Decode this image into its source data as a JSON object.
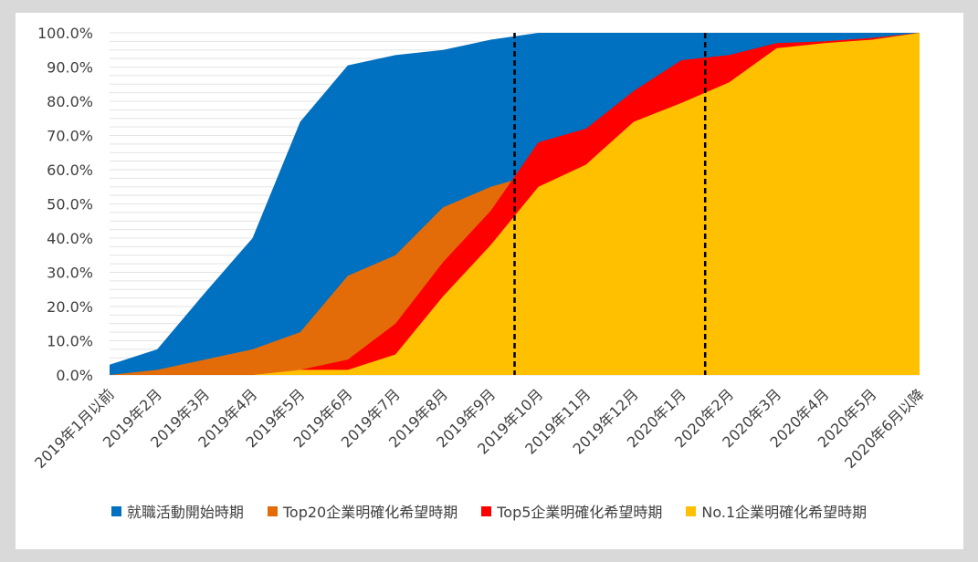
{
  "chart_data": {
    "type": "area",
    "categories": [
      "2019年1月以前",
      "2019年2月",
      "2019年3月",
      "2019年4月",
      "2019年5月",
      "2019年6月",
      "2019年7月",
      "2019年8月",
      "2019年9月",
      "2019年10月",
      "2019年11月",
      "2019年12月",
      "2020年1月",
      "2020年2月",
      "2020年3月",
      "2020年4月",
      "2020年5月",
      "2020年6月以降"
    ],
    "yticks": [
      "0.0%",
      "10.0%",
      "20.0%",
      "30.0%",
      "40.0%",
      "50.0%",
      "60.0%",
      "70.0%",
      "80.0%",
      "90.0%",
      "100.0%"
    ],
    "ylim": [
      0,
      100
    ],
    "grid": true,
    "legend_position": "bottom",
    "series": [
      {
        "name": "就職活動開始時期",
        "color": "#0070c0",
        "values": [
          3,
          7.5,
          24,
          40,
          74,
          90.5,
          93.5,
          95,
          98,
          100,
          100,
          100,
          100,
          100,
          100,
          100,
          100,
          100
        ]
      },
      {
        "name": "Top20企業明確化希望時期",
        "color": "#e36c09",
        "values": [
          0,
          1.5,
          4.5,
          7.5,
          12.5,
          29,
          35,
          49,
          55,
          59,
          68,
          80.5,
          88,
          93,
          96.5,
          97.5,
          98.5,
          100
        ]
      },
      {
        "name": "Top5企業明確化希望時期",
        "color": "#ff0000",
        "values": [
          0,
          0,
          0,
          0,
          1.5,
          4.5,
          15,
          33,
          48,
          68,
          72,
          83,
          92,
          93.5,
          97,
          97.5,
          98.5,
          100
        ]
      },
      {
        "name": "No.1企業明確化希望時期",
        "color": "#ffc000",
        "values": [
          0,
          0,
          0,
          0,
          1.5,
          1.5,
          6,
          23,
          38,
          55,
          61.5,
          74,
          79.5,
          85.5,
          95.5,
          97,
          98,
          100
        ]
      }
    ],
    "vertical_markers": [
      {
        "at_category_index": 8.5,
        "style": "dashed",
        "color": "#000000"
      },
      {
        "at_category_index": 12.5,
        "style": "dashed",
        "color": "#000000"
      }
    ]
  }
}
